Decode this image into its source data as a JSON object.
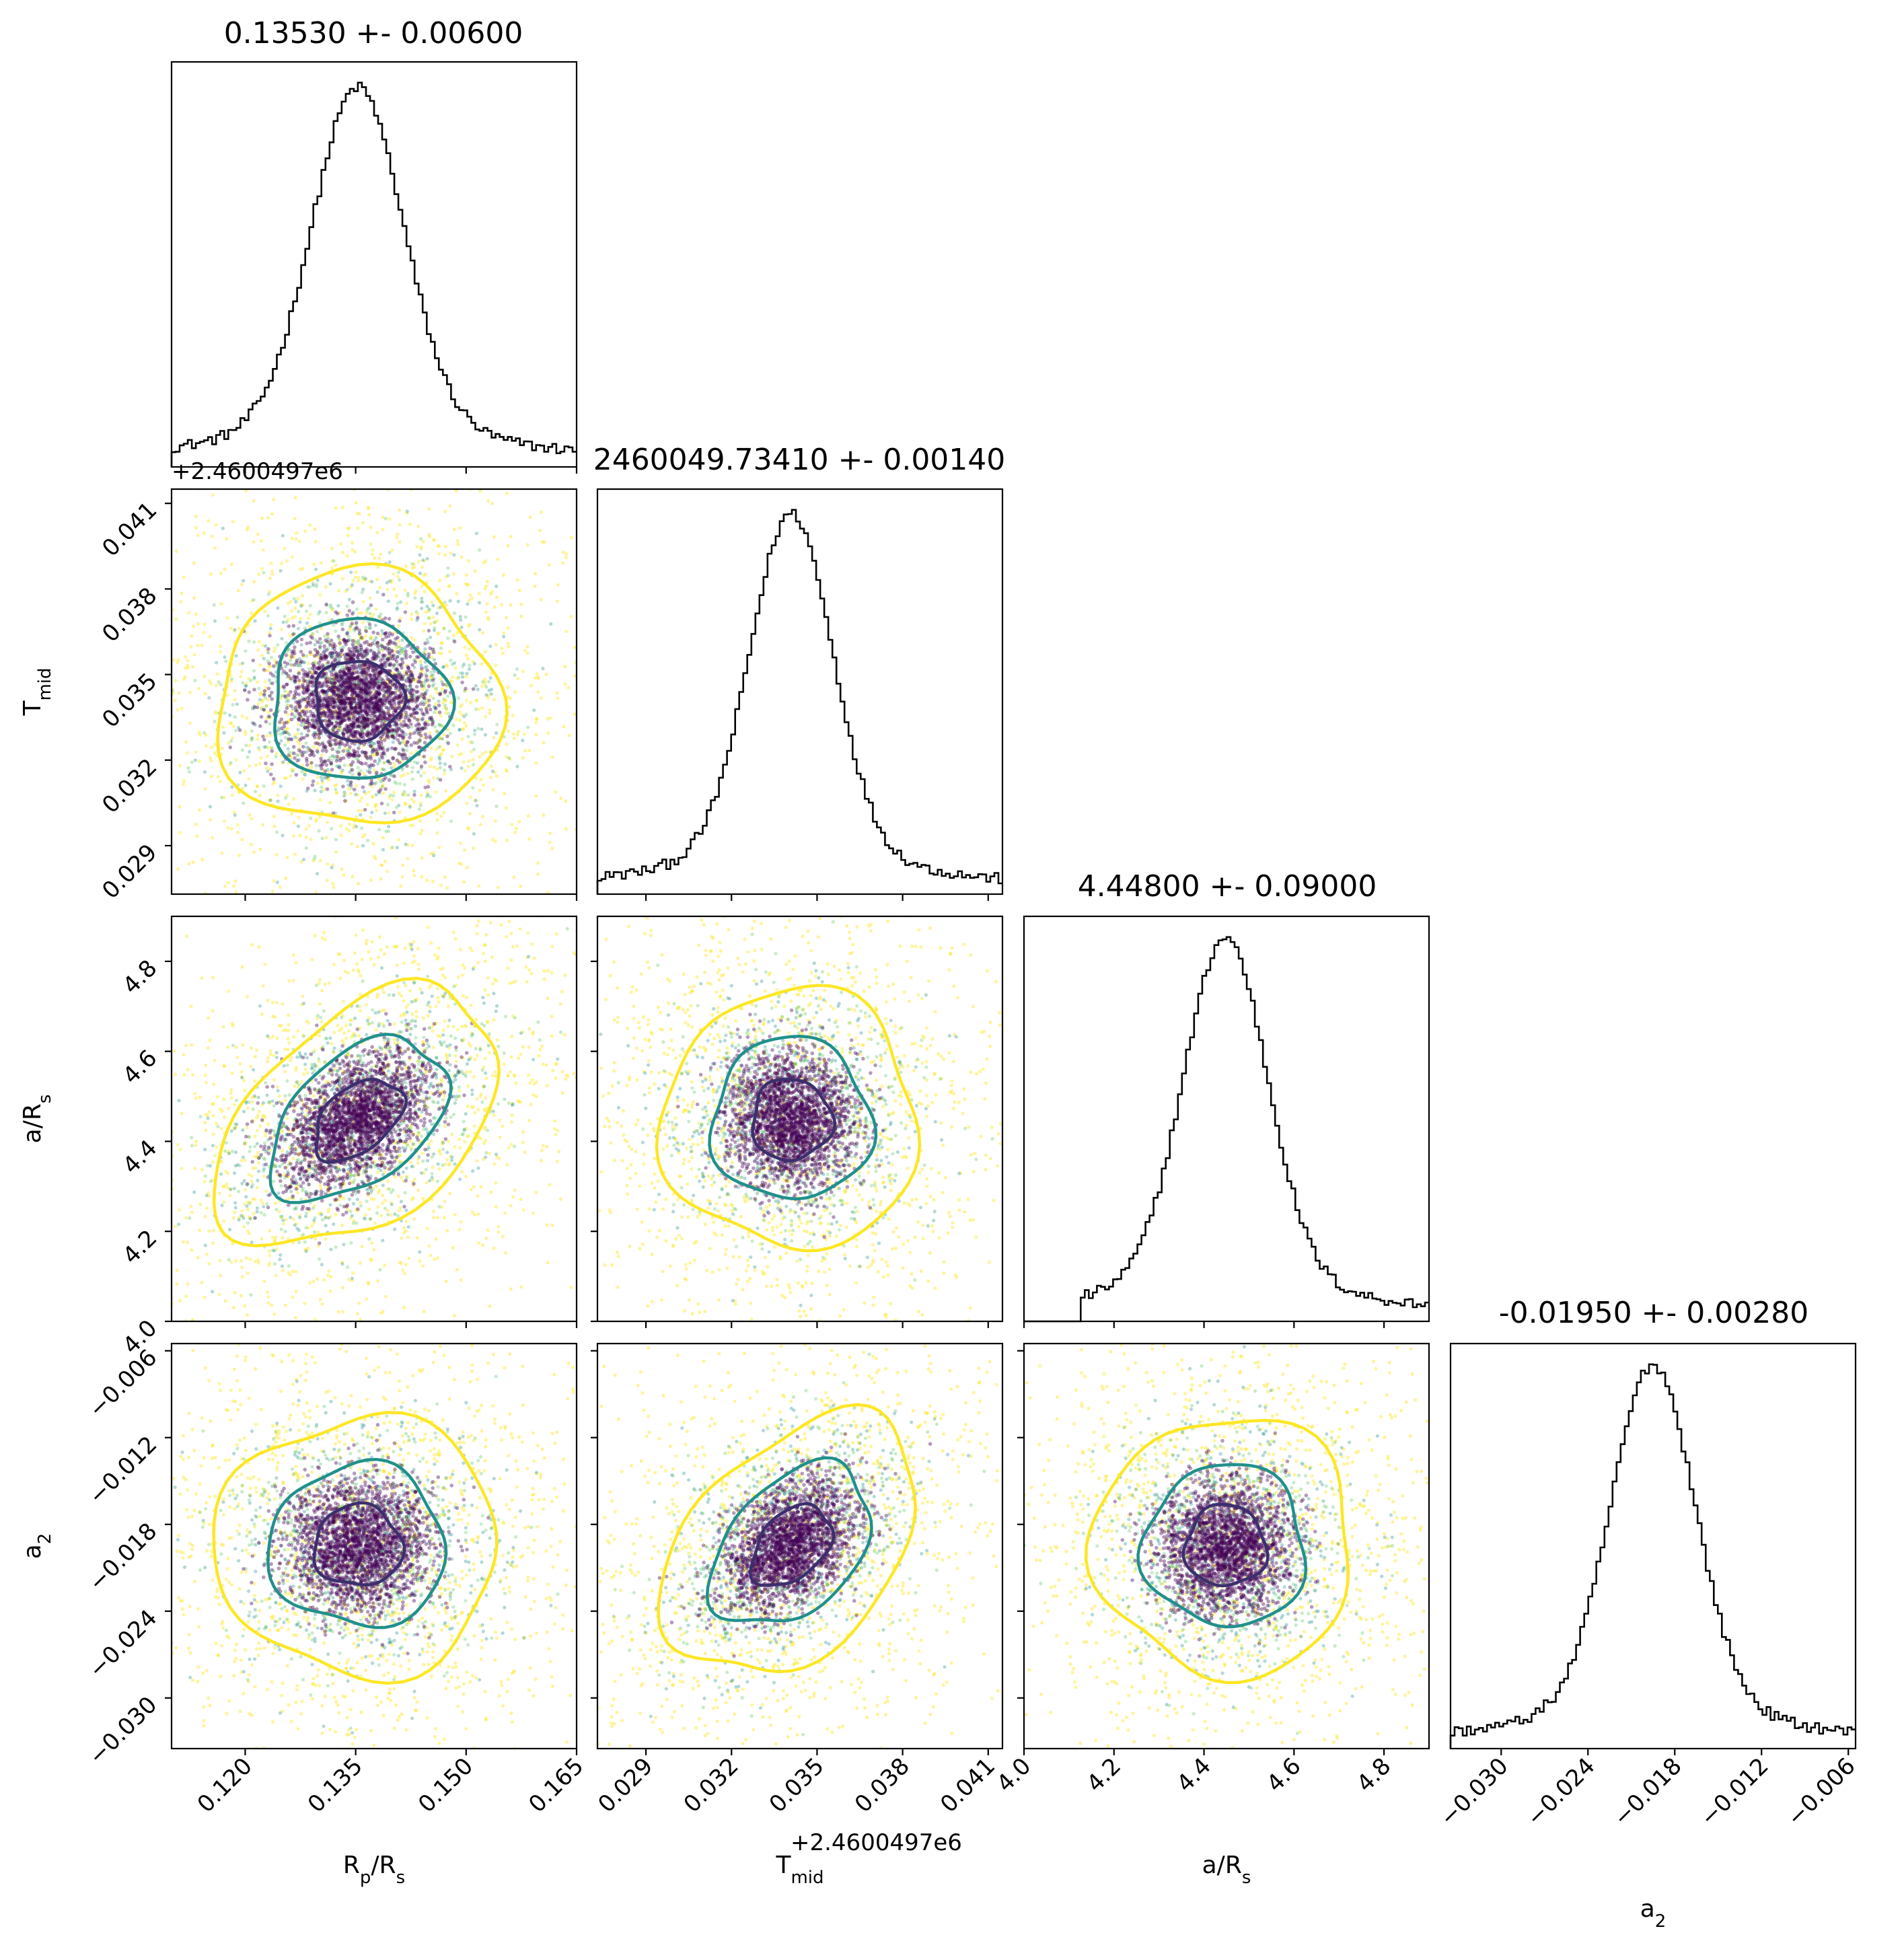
{
  "chart_data": {
    "type": "corner",
    "parameters": [
      {
        "id": "rp",
        "label": "R_p/R_s",
        "label_main": "R",
        "label_sub": "p",
        "label_tail": "/R",
        "label_sub2": "s",
        "mean": 0.1353,
        "sigma": 0.006,
        "range": [
          0.11,
          0.165
        ],
        "ticks": [
          0.12,
          0.135,
          0.15,
          0.165
        ],
        "tick_labels": [
          "0.120",
          "0.135",
          "0.150",
          "0.165"
        ],
        "title": "0.13530 +- 0.00600"
      },
      {
        "id": "tmid",
        "label": "T_mid",
        "label_main": "T",
        "label_sub": "mid",
        "label_tail": "",
        "label_sub2": "",
        "mean": 0.0341,
        "sigma": 0.0014,
        "range": [
          0.0273,
          0.0415
        ],
        "ticks": [
          0.029,
          0.032,
          0.035,
          0.038,
          0.041
        ],
        "tick_labels": [
          "0.029",
          "0.032",
          "0.035",
          "0.038",
          "0.041"
        ],
        "offset_text": "+2.4600497e6",
        "title": "2460049.73410 +- 0.00140"
      },
      {
        "id": "ars",
        "label": "a/R_s",
        "label_main": "a/R",
        "label_sub": "s",
        "label_tail": "",
        "label_sub2": "",
        "mean": 4.448,
        "sigma": 0.09,
        "range": [
          4.0,
          4.9
        ],
        "ticks": [
          4.0,
          4.2,
          4.4,
          4.6,
          4.8
        ],
        "tick_labels": [
          "4.0",
          "4.2",
          "4.4",
          "4.6",
          "4.8"
        ],
        "title": "4.44800 +- 0.09000"
      },
      {
        "id": "a2",
        "label": "a_2",
        "label_main": "a",
        "label_sub": "2",
        "label_tail": "",
        "label_sub2": "",
        "mean": -0.0195,
        "sigma": 0.0028,
        "range": [
          -0.0335,
          -0.0055
        ],
        "ticks": [
          -0.03,
          -0.024,
          -0.018,
          -0.012,
          -0.006
        ],
        "tick_labels": [
          "−0.030",
          "−0.024",
          "−0.018",
          "−0.012",
          "−0.006"
        ],
        "title": "-0.01950 +- 0.00280"
      }
    ],
    "correlations": {
      "rp_ars": 0.45,
      "tmid_a2": 0.4
    },
    "hist_peaks": [
      1.0,
      1.0,
      1.0,
      1.0
    ],
    "contour_levels": [
      "1-sigma",
      "2-sigma",
      "3-sigma"
    ],
    "colors": {
      "contour_inner": "#3b2f6d",
      "contour_mid": "#21908c",
      "contour_outer": "#fde725",
      "points_dense": "#440154",
      "points_mid": "#21908c",
      "points_sparse": "#fde725",
      "hist_line": "#000000"
    },
    "grid": false,
    "legend": "none"
  }
}
